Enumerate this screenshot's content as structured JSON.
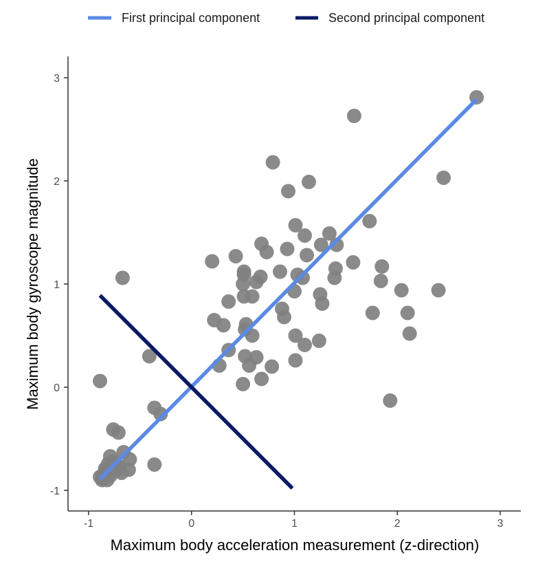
{
  "chart_data": {
    "type": "scatter",
    "xlabel": "Maximum body acceleration measurement (z-direction)",
    "ylabel": "Maximum body gyroscope magnitude",
    "xlim": [
      -1.0,
      3.0
    ],
    "ylim": [
      -1.15,
      3.25
    ],
    "x_ticks": [
      -1,
      0,
      1,
      2,
      3
    ],
    "y_ticks": [
      -1,
      0,
      1,
      2,
      3
    ],
    "grid": false,
    "legend_position": "top",
    "colors": {
      "points": "#808080",
      "first_pc": "#5b8ae5",
      "second_pc": "#0a1a66",
      "axis": "#333333"
    },
    "legend": [
      {
        "label": "First principal component",
        "color": "#5b8ae5"
      },
      {
        "label": "Second principal component",
        "color": "#0a1a66"
      }
    ],
    "lines": [
      {
        "name": "First principal component",
        "x": [
          -0.89,
          2.77
        ],
        "y": [
          -0.89,
          2.79
        ]
      },
      {
        "name": "Second principal component",
        "x": [
          -0.89,
          0.98
        ],
        "y": [
          0.89,
          -0.98
        ]
      }
    ],
    "points": [
      {
        "x": -0.89,
        "y": 0.06
      },
      {
        "x": -0.67,
        "y": 1.06
      },
      {
        "x": -0.41,
        "y": 0.3
      },
      {
        "x": -0.36,
        "y": -0.2
      },
      {
        "x": -0.3,
        "y": -0.26
      },
      {
        "x": -0.36,
        "y": -0.75
      },
      {
        "x": -0.76,
        "y": -0.41
      },
      {
        "x": -0.71,
        "y": -0.44
      },
      {
        "x": -0.79,
        "y": -0.67
      },
      {
        "x": -0.66,
        "y": -0.63
      },
      {
        "x": -0.6,
        "y": -0.7
      },
      {
        "x": -0.61,
        "y": -0.8
      },
      {
        "x": -0.68,
        "y": -0.83
      },
      {
        "x": -0.72,
        "y": -0.76
      },
      {
        "x": -0.76,
        "y": -0.72
      },
      {
        "x": -0.81,
        "y": -0.74
      },
      {
        "x": -0.83,
        "y": -0.81
      },
      {
        "x": -0.86,
        "y": -0.85
      },
      {
        "x": -0.89,
        "y": -0.87
      },
      {
        "x": -0.87,
        "y": -0.9
      },
      {
        "x": -0.82,
        "y": -0.9
      },
      {
        "x": -0.79,
        "y": -0.86
      },
      {
        "x": -0.74,
        "y": -0.81
      },
      {
        "x": -0.7,
        "y": -0.77
      },
      {
        "x": -0.78,
        "y": -0.78
      },
      {
        "x": -0.84,
        "y": -0.79
      },
      {
        "x": 0.2,
        "y": 1.22
      },
      {
        "x": 0.43,
        "y": 1.27
      },
      {
        "x": 0.51,
        "y": 1.12
      },
      {
        "x": 0.51,
        "y": 1.09
      },
      {
        "x": 0.5,
        "y": 1.0
      },
      {
        "x": 0.63,
        "y": 1.02
      },
      {
        "x": 0.67,
        "y": 1.07
      },
      {
        "x": 0.68,
        "y": 1.39
      },
      {
        "x": 0.73,
        "y": 1.31
      },
      {
        "x": 0.79,
        "y": 2.18
      },
      {
        "x": 0.94,
        "y": 1.9
      },
      {
        "x": 1.14,
        "y": 1.99
      },
      {
        "x": 0.93,
        "y": 1.34
      },
      {
        "x": 1.01,
        "y": 1.57
      },
      {
        "x": 1.1,
        "y": 1.47
      },
      {
        "x": 1.12,
        "y": 1.28
      },
      {
        "x": 1.26,
        "y": 1.38
      },
      {
        "x": 1.34,
        "y": 1.49
      },
      {
        "x": 1.41,
        "y": 1.38
      },
      {
        "x": 1.4,
        "y": 1.15
      },
      {
        "x": 1.39,
        "y": 1.06
      },
      {
        "x": 1.57,
        "y": 1.21
      },
      {
        "x": 1.58,
        "y": 2.63
      },
      {
        "x": 1.73,
        "y": 1.61
      },
      {
        "x": 2.77,
        "y": 2.81
      },
      {
        "x": 2.45,
        "y": 2.03
      },
      {
        "x": 1.85,
        "y": 1.17
      },
      {
        "x": 1.84,
        "y": 1.03
      },
      {
        "x": 2.04,
        "y": 0.94
      },
      {
        "x": 2.4,
        "y": 0.94
      },
      {
        "x": 2.1,
        "y": 0.72
      },
      {
        "x": 2.12,
        "y": 0.52
      },
      {
        "x": 1.76,
        "y": 0.72
      },
      {
        "x": 1.93,
        "y": -0.13
      },
      {
        "x": 0.86,
        "y": 1.12
      },
      {
        "x": 1.03,
        "y": 1.09
      },
      {
        "x": 1.08,
        "y": 1.06
      },
      {
        "x": 1.0,
        "y": 0.93
      },
      {
        "x": 0.88,
        "y": 0.76
      },
      {
        "x": 0.9,
        "y": 0.68
      },
      {
        "x": 1.25,
        "y": 0.9
      },
      {
        "x": 1.27,
        "y": 0.81
      },
      {
        "x": 1.01,
        "y": 0.5
      },
      {
        "x": 1.1,
        "y": 0.41
      },
      {
        "x": 1.24,
        "y": 0.45
      },
      {
        "x": 1.01,
        "y": 0.26
      },
      {
        "x": 0.36,
        "y": 0.83
      },
      {
        "x": 0.51,
        "y": 0.88
      },
      {
        "x": 0.59,
        "y": 0.88
      },
      {
        "x": 0.22,
        "y": 0.65
      },
      {
        "x": 0.31,
        "y": 0.6
      },
      {
        "x": 0.53,
        "y": 0.61
      },
      {
        "x": 0.52,
        "y": 0.56
      },
      {
        "x": 0.59,
        "y": 0.5
      },
      {
        "x": 0.36,
        "y": 0.36
      },
      {
        "x": 0.27,
        "y": 0.21
      },
      {
        "x": 0.52,
        "y": 0.3
      },
      {
        "x": 0.63,
        "y": 0.29
      },
      {
        "x": 0.56,
        "y": 0.21
      },
      {
        "x": 0.78,
        "y": 0.2
      },
      {
        "x": 0.68,
        "y": 0.08
      },
      {
        "x": 0.5,
        "y": 0.03
      }
    ]
  }
}
